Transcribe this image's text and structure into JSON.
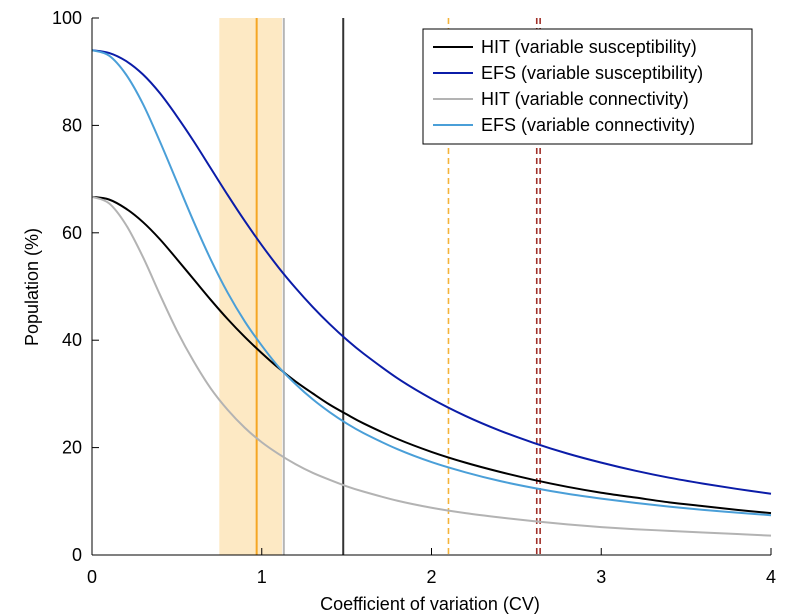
{
  "chart_data": {
    "type": "line",
    "title": "",
    "xlabel": "Coefficient of variation (CV)",
    "ylabel": "Population (%)",
    "xlim": [
      0,
      4
    ],
    "ylim": [
      0,
      100
    ],
    "xticks": [
      0,
      1,
      2,
      3,
      4
    ],
    "yticks": [
      0,
      20,
      40,
      60,
      80,
      100
    ],
    "grid": false,
    "legend_position": "top-right",
    "series": [
      {
        "name": "HIT (variable susceptibility)",
        "color": "#000000",
        "x": [
          0,
          0.1,
          0.2,
          0.3,
          0.4,
          0.5,
          0.6,
          0.7,
          0.8,
          0.9,
          1.0,
          1.1,
          1.2,
          1.3,
          1.4,
          1.5,
          1.6,
          1.8,
          2.0,
          2.2,
          2.4,
          2.6,
          2.8,
          3.0,
          3.2,
          3.4,
          3.6,
          3.8,
          4.0
        ],
        "y": [
          66.7,
          66.2,
          64.5,
          62.0,
          58.8,
          55.1,
          51.3,
          47.5,
          43.9,
          40.6,
          37.6,
          34.8,
          32.3,
          30.1,
          28.0,
          26.2,
          24.5,
          21.6,
          19.2,
          17.2,
          15.5,
          14.0,
          12.7,
          11.6,
          10.7,
          9.8,
          9.1,
          8.4,
          7.8
        ]
      },
      {
        "name": "EFS (variable susceptibility)",
        "color": "#0b1ca8",
        "x": [
          0,
          0.1,
          0.2,
          0.3,
          0.4,
          0.5,
          0.6,
          0.7,
          0.8,
          0.9,
          1.0,
          1.1,
          1.2,
          1.3,
          1.4,
          1.5,
          1.6,
          1.8,
          2.0,
          2.2,
          2.4,
          2.6,
          2.8,
          3.0,
          3.2,
          3.4,
          3.6,
          3.8,
          4.0
        ],
        "y": [
          94.0,
          93.5,
          92.0,
          89.5,
          86.0,
          81.7,
          77.0,
          72.0,
          67.0,
          62.2,
          57.7,
          53.5,
          49.7,
          46.2,
          43.0,
          40.1,
          37.5,
          32.9,
          29.1,
          25.9,
          23.2,
          20.9,
          18.9,
          17.2,
          15.7,
          14.4,
          13.3,
          12.3,
          11.4
        ]
      },
      {
        "name": "HIT (variable connectivity)",
        "color": "#b3b3b3",
        "x": [
          0,
          0.1,
          0.2,
          0.3,
          0.4,
          0.5,
          0.6,
          0.7,
          0.8,
          0.9,
          1.0,
          1.1,
          1.2,
          1.3,
          1.4,
          1.5,
          1.6,
          1.8,
          2.0,
          2.2,
          2.4,
          2.6,
          2.8,
          3.0,
          3.2,
          3.4,
          3.6,
          3.8,
          4.0
        ],
        "y": [
          66.7,
          65.5,
          61.5,
          55.5,
          48.5,
          41.8,
          36.0,
          31.0,
          27.0,
          23.7,
          21.0,
          18.8,
          16.9,
          15.3,
          14.0,
          12.8,
          11.8,
          10.1,
          8.8,
          7.8,
          7.0,
          6.3,
          5.7,
          5.2,
          4.8,
          4.5,
          4.2,
          3.9,
          3.6
        ]
      },
      {
        "name": "EFS (variable connectivity)",
        "color": "#4a9fd8",
        "x": [
          0,
          0.1,
          0.2,
          0.3,
          0.4,
          0.5,
          0.6,
          0.7,
          0.8,
          0.9,
          1.0,
          1.1,
          1.2,
          1.3,
          1.4,
          1.5,
          1.6,
          1.8,
          2.0,
          2.2,
          2.4,
          2.6,
          2.8,
          3.0,
          3.2,
          3.4,
          3.6,
          3.8,
          4.0
        ],
        "y": [
          94.0,
          93.0,
          89.5,
          84.0,
          77.0,
          69.5,
          62.0,
          55.0,
          48.8,
          43.5,
          39.0,
          35.0,
          31.8,
          29.0,
          26.6,
          24.5,
          22.7,
          19.7,
          17.3,
          15.4,
          13.8,
          12.5,
          11.4,
          10.5,
          9.7,
          9.0,
          8.4,
          7.9,
          7.4
        ]
      }
    ],
    "shaded_region": {
      "x": [
        0.75,
        1.12
      ],
      "color": "#fde9c4"
    },
    "vertical_lines": [
      {
        "x": 0.97,
        "color": "#f5a623",
        "style": "solid"
      },
      {
        "x": 1.13,
        "color": "#b5b5b5",
        "style": "solid"
      },
      {
        "x": 1.48,
        "color": "#333333",
        "style": "solid"
      },
      {
        "x": 2.1,
        "color": "#f5b43a",
        "style": "dashed"
      },
      {
        "x": 2.62,
        "color": "#a0302a",
        "style": "dashed"
      },
      {
        "x": 2.64,
        "color": "#a0302a",
        "style": "dashed"
      }
    ]
  }
}
